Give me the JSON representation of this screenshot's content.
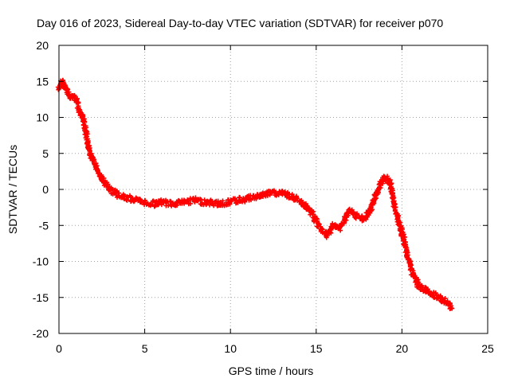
{
  "chart_data": {
    "type": "scatter",
    "title": "Day 016 of 2023, Sidereal Day-to-day VTEC variation (SDTVAR) for receiver p070",
    "xlabel": "GPS time / hours",
    "ylabel": "SDTVAR / TECUs",
    "xlim": [
      0,
      25
    ],
    "ylim": [
      -20,
      20
    ],
    "xticks": [
      0,
      5,
      10,
      15,
      20,
      25
    ],
    "yticks": [
      -20,
      -15,
      -10,
      -5,
      0,
      5,
      10,
      15,
      20
    ],
    "grid": true,
    "marker": "+",
    "color": "#ff0000",
    "series": [
      {
        "name": "SDTVAR",
        "x": [
          0.0,
          0.2,
          0.4,
          0.6,
          0.8,
          1.0,
          1.2,
          1.4,
          1.6,
          1.8,
          2.0,
          2.2,
          2.5,
          2.8,
          3.0,
          3.3,
          3.6,
          4.0,
          4.5,
          5.0,
          5.5,
          6.0,
          6.5,
          7.0,
          7.5,
          8.0,
          8.5,
          9.0,
          9.5,
          10.0,
          10.5,
          11.0,
          11.5,
          12.0,
          12.5,
          13.0,
          13.5,
          14.0,
          14.5,
          14.8,
          15.0,
          15.3,
          15.6,
          16.0,
          16.3,
          16.6,
          16.9,
          17.2,
          17.5,
          17.8,
          18.0,
          18.3,
          18.6,
          18.9,
          19.1,
          19.3,
          19.5,
          19.7,
          20.0,
          20.3,
          20.6,
          21.0,
          21.4,
          21.8,
          22.2,
          22.5,
          22.8,
          22.9
        ],
        "values": [
          14.0,
          15.0,
          14.0,
          13.0,
          13.0,
          12.5,
          11.0,
          10.0,
          7.5,
          5.0,
          4.0,
          3.0,
          1.5,
          0.5,
          0.0,
          -0.5,
          -1.0,
          -1.2,
          -1.5,
          -1.8,
          -2.0,
          -1.8,
          -2.0,
          -1.8,
          -1.7,
          -1.5,
          -1.8,
          -1.9,
          -2.0,
          -1.7,
          -1.5,
          -1.3,
          -1.0,
          -0.7,
          -0.5,
          -0.5,
          -1.0,
          -1.5,
          -2.5,
          -3.5,
          -4.5,
          -5.5,
          -6.5,
          -5.0,
          -5.5,
          -4.5,
          -3.0,
          -3.5,
          -4.0,
          -4.0,
          -3.5,
          -2.0,
          0.0,
          1.5,
          1.5,
          1.0,
          -1.5,
          -3.5,
          -6.0,
          -9.0,
          -11.5,
          -13.5,
          -14.0,
          -14.5,
          -15.0,
          -15.5,
          -16.0,
          -16.5
        ]
      }
    ]
  }
}
